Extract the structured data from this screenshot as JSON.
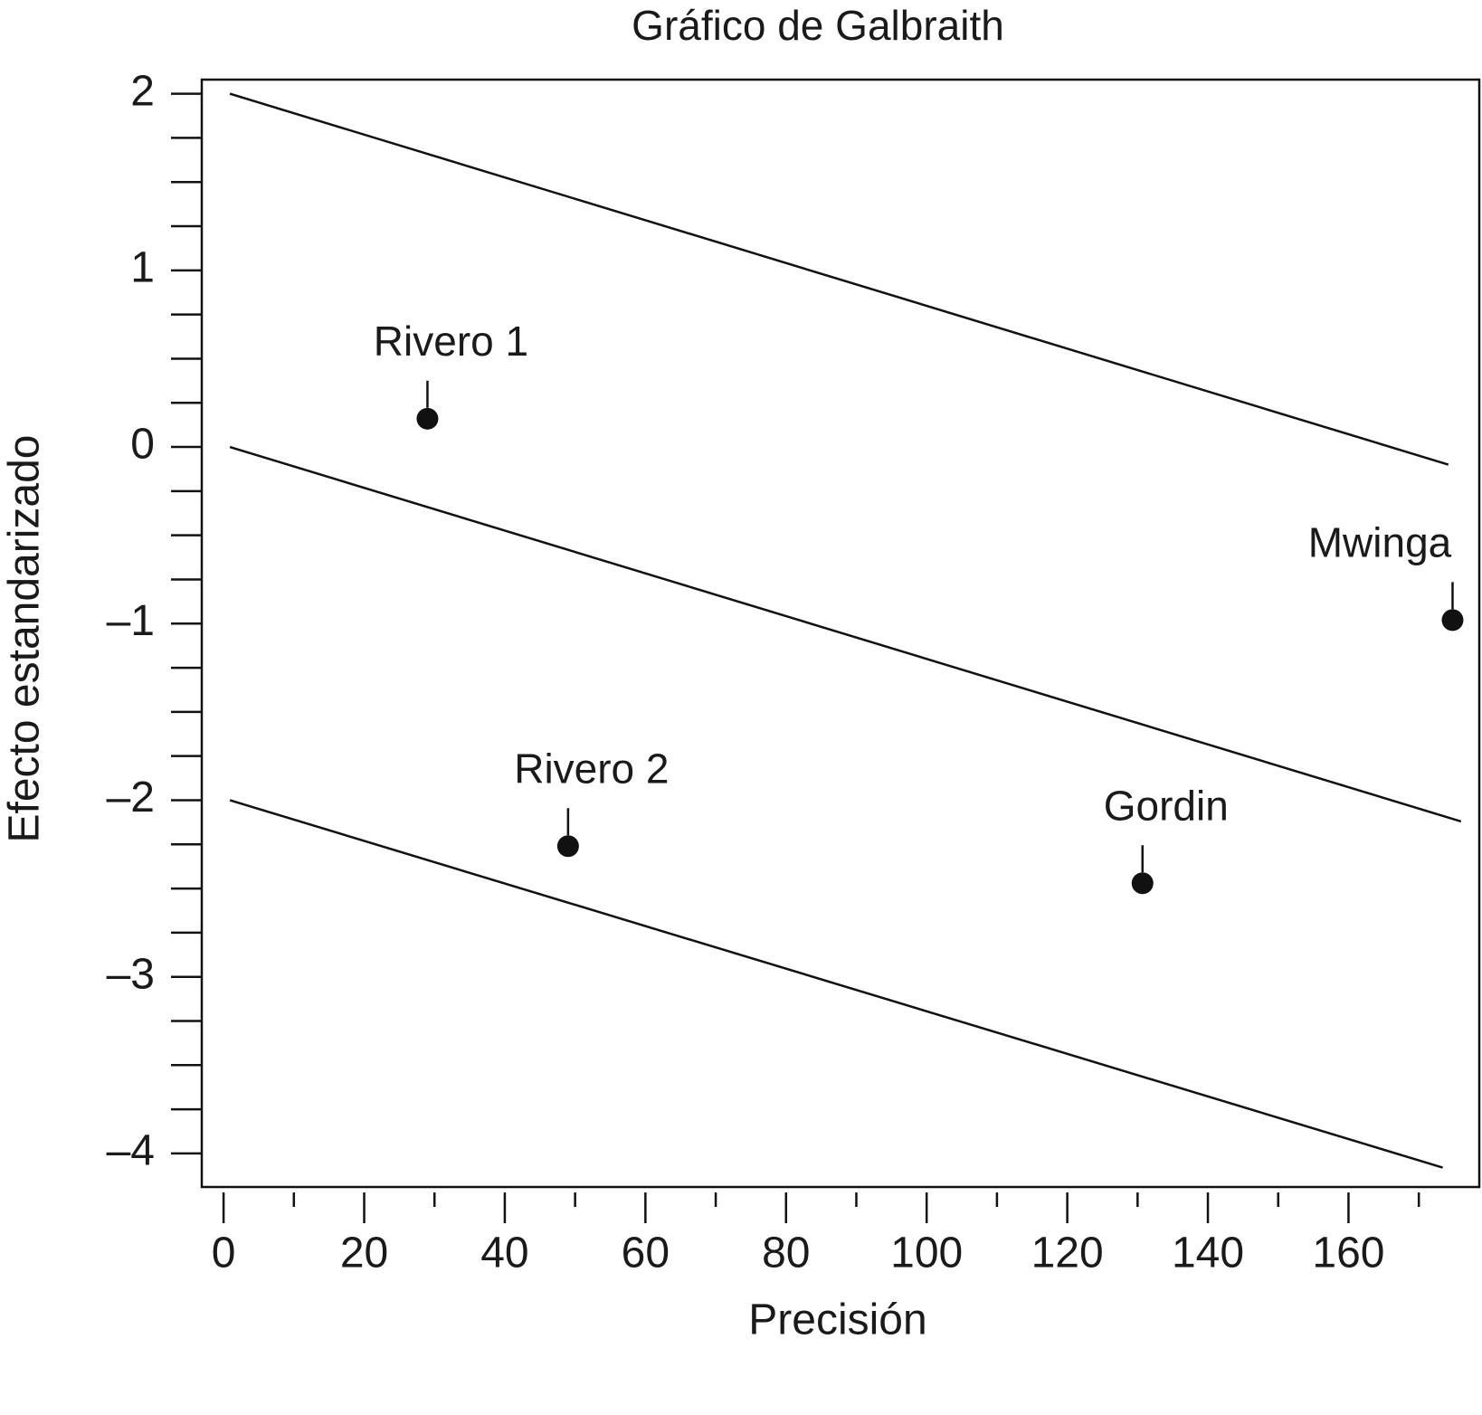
{
  "chart_data": {
    "type": "scatter",
    "title": "Gráfico de Galbraith",
    "xlabel": "Precisión",
    "ylabel": "Efecto estandarizado",
    "xlim": [
      -3.1,
      178.6
    ],
    "ylim": [
      -4.19,
      2.08
    ],
    "xticks": [
      0,
      20,
      40,
      60,
      80,
      100,
      120,
      140,
      160
    ],
    "xminorticks": [
      10,
      30,
      50,
      70,
      90,
      110,
      130,
      150,
      170
    ],
    "yticks": [
      2,
      1,
      0,
      {
        "value": -1,
        "label": "–1"
      },
      {
        "value": -2,
        "label": "–2"
      },
      {
        "value": -3,
        "label": "–3"
      },
      {
        "value": -4,
        "label": "–4"
      }
    ],
    "yminorticks": [
      1.75,
      1.5,
      1.25,
      0.75,
      0.5,
      0.25,
      -0.25,
      -0.5,
      -0.75,
      -1.25,
      -1.5,
      -1.75,
      -2.25,
      -2.5,
      -2.75,
      -3.25,
      -3.5,
      -3.75
    ],
    "color": "#111111",
    "points": [
      {
        "label": "Rivero 1",
        "x": 29,
        "y": 0.16
      },
      {
        "label": "Rivero 2",
        "x": 49,
        "y": -2.26
      },
      {
        "label": "Gordin",
        "x": 130.7,
        "y": -2.47
      },
      {
        "label": "Mwinga",
        "x": 174.8,
        "y": -0.98
      }
    ],
    "lines": [
      {
        "x": [
          0.9,
          174.2
        ],
        "values": [
          2,
          -0.1
        ]
      },
      {
        "x": [
          0.9,
          176
        ],
        "values": [
          0,
          -2.12
        ]
      },
      {
        "x": [
          0.9,
          173.4
        ],
        "values": [
          -2,
          -4.08
        ]
      }
    ]
  }
}
